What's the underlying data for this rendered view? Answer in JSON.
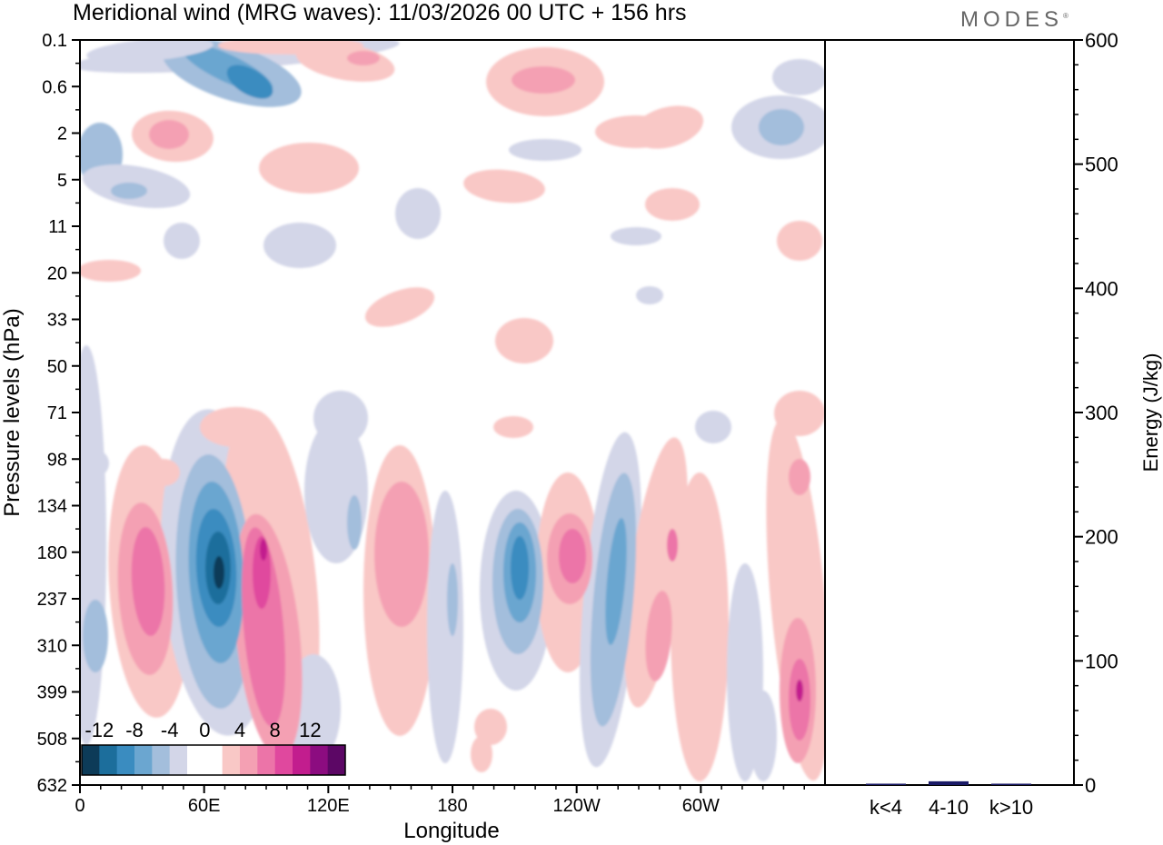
{
  "header": {
    "title": "Meridional wind (MRG waves):  11/03/2026  00 UTC  + 156 hrs",
    "brand": "MODES",
    "brand_mark": "®"
  },
  "chart_data": [
    {
      "type": "heatmap",
      "title": "Meridional wind (MRG waves)",
      "xlabel": "Longitude",
      "ylabel": "Pressure levels (hPa)",
      "x_ticks": [
        "0",
        "60E",
        "120E",
        "180",
        "120W",
        "60W"
      ],
      "x_tick_degrees": [
        0,
        60,
        120,
        180,
        240,
        300
      ],
      "xlim": [
        0,
        360
      ],
      "y_ticks": [
        "0.1",
        "0.6",
        "2",
        "5",
        "11",
        "20",
        "33",
        "50",
        "71",
        "98",
        "134",
        "180",
        "237",
        "310",
        "399",
        "508",
        "632"
      ],
      "colorbar": {
        "levels": [
          -12,
          -10,
          -8,
          -6,
          -4,
          -2,
          0,
          2,
          4,
          6,
          8,
          10,
          12
        ],
        "labels": [
          "-12",
          "-8",
          "-4",
          "0",
          "4",
          "8",
          "12"
        ],
        "colors": [
          "#0d3b58",
          "#1c6e9c",
          "#3a8cc0",
          "#6ba6d0",
          "#a3bedc",
          "#d3d6e8",
          "#ffffff",
          "#ffffff",
          "#f9c8c6",
          "#f4a0b3",
          "#ec74a8",
          "#e0489e",
          "#c21d8e",
          "#8c0c80",
          "#5c0765"
        ]
      },
      "features": [
        {
          "name": "stratosphere-negative-band",
          "lon": 60,
          "level": 0.6,
          "value": -8
        },
        {
          "name": "stratosphere-positive-band",
          "lon": 225,
          "level": 0.6,
          "value": 6
        },
        {
          "name": "tropo-positive-30E",
          "lon": 32,
          "level": 237,
          "value": 8
        },
        {
          "name": "tropo-negative-65E",
          "lon": 66,
          "level": 180,
          "value": -14
        },
        {
          "name": "tropo-positive-90E",
          "lon": 90,
          "level": 310,
          "value": 10
        },
        {
          "name": "tropo-positive-160E",
          "lon": 158,
          "level": 237,
          "value": 6
        },
        {
          "name": "tropo-negative-150W",
          "lon": 212,
          "level": 180,
          "value": -10
        },
        {
          "name": "tropo-positive-130W",
          "lon": 229,
          "level": 180,
          "value": 8
        },
        {
          "name": "tropo-negative-105W",
          "lon": 255,
          "level": 237,
          "value": -6
        },
        {
          "name": "tropo-positive-10W",
          "lon": 348,
          "level": 399,
          "value": 8
        }
      ]
    },
    {
      "type": "bar",
      "categories": [
        "k<4",
        "4-10",
        "k>10"
      ],
      "values": [
        1,
        3,
        1
      ],
      "ylabel": "Energy (J/kg)",
      "ylim": [
        0,
        600
      ],
      "y_ticks": [
        "0",
        "100",
        "200",
        "300",
        "400",
        "500",
        "600"
      ],
      "bar_color": "#1a1a66"
    }
  ]
}
